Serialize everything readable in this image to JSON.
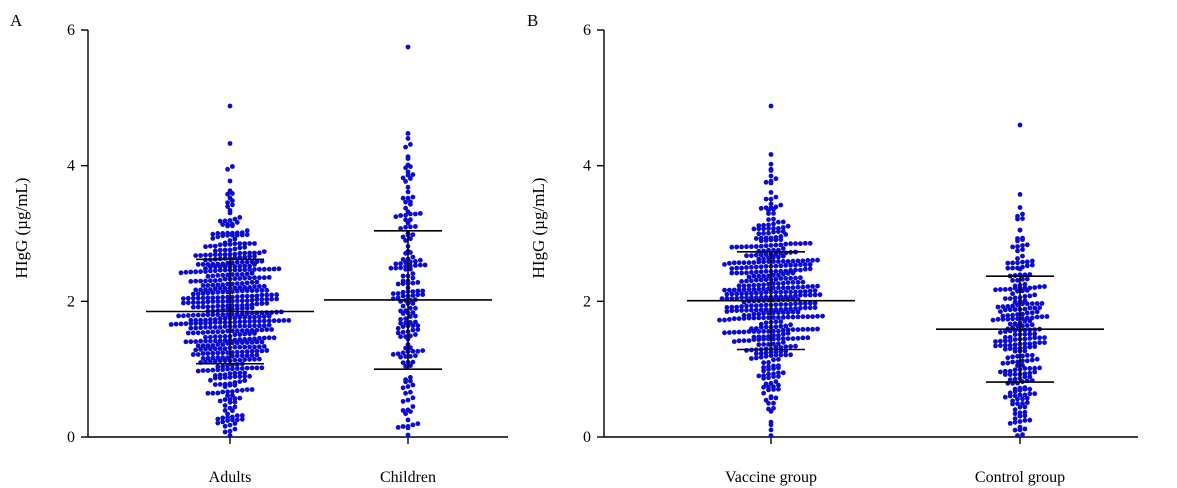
{
  "colors": {
    "points": "#0a0ad2",
    "axis": "#000000",
    "lines": "#000000"
  },
  "chart_data": [
    {
      "type": "scatter",
      "style": "dot plot (beeswarm) with mean and SD bars",
      "panel_label": "A",
      "ylabel": "HIgG (µg/mL)",
      "ylim": [
        0,
        6
      ],
      "yticks": [
        0,
        2,
        4,
        6
      ],
      "categories": [
        "Adults",
        "Children"
      ],
      "groups": [
        {
          "name": "Adults",
          "n": 560,
          "mean": 1.85,
          "sd": 0.77,
          "sd_low": 1.08,
          "sd_high": 2.62,
          "max": 4.88,
          "min": 0.02
        },
        {
          "name": "Children",
          "n": 175,
          "mean": 2.02,
          "sd": 1.02,
          "sd_low": 1.0,
          "sd_high": 3.04,
          "max": 5.75,
          "min": 0.03
        }
      ]
    },
    {
      "type": "scatter",
      "style": "dot plot (beeswarm) with mean and SD bars",
      "panel_label": "B",
      "ylabel": "HIgG (µg/mL)",
      "ylim": [
        0,
        6
      ],
      "yticks": [
        0,
        2,
        4,
        6
      ],
      "categories": [
        "Vaccine group",
        "Control group"
      ],
      "groups": [
        {
          "name": "Vaccine group",
          "n": 470,
          "mean": 2.01,
          "sd": 0.72,
          "sd_low": 1.29,
          "sd_high": 2.73,
          "max": 4.88,
          "min": 0.02
        },
        {
          "name": "Control group",
          "n": 255,
          "mean": 1.59,
          "sd": 0.78,
          "sd_low": 0.81,
          "sd_high": 2.37,
          "max": 4.6,
          "min": 0.02
        }
      ]
    }
  ]
}
